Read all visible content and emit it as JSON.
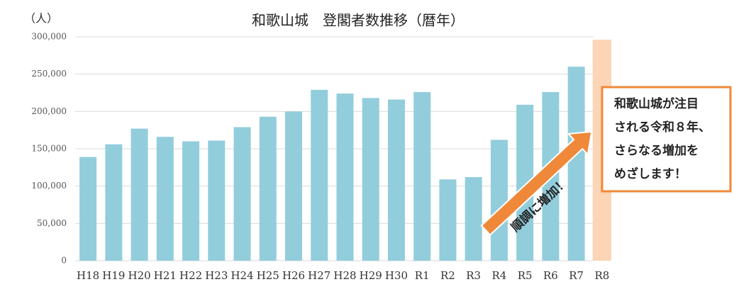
{
  "chart_data": {
    "type": "bar",
    "title": "和歌山城　登閣者数推移（暦年）",
    "y_unit": "（人）",
    "categories": [
      "H18",
      "H19",
      "H20",
      "H21",
      "H22",
      "H23",
      "H24",
      "H25",
      "H26",
      "H27",
      "H28",
      "H29",
      "H30",
      "R1",
      "R2",
      "R3",
      "R4",
      "R5",
      "R6",
      "R7",
      "R8"
    ],
    "values": [
      139000,
      156000,
      177000,
      166000,
      160000,
      161000,
      179000,
      193000,
      200000,
      229000,
      224000,
      218000,
      216000,
      226000,
      109000,
      112000,
      162000,
      209000,
      226000,
      260000,
      null
    ],
    "color": "#92cddc",
    "ylim": [
      0,
      300000
    ],
    "yticks": [
      0,
      {
        "value": 50000,
        "label": "50,000"
      },
      {
        "value": 100000,
        "label": "100,000"
      },
      {
        "value": 150000,
        "label": "150,000"
      },
      {
        "value": 200000,
        "label": "200,000"
      },
      {
        "value": 250000,
        "label": "250,000"
      },
      {
        "value": 300000,
        "label": "300,000"
      }
    ],
    "grid": true,
    "highlight_category": "R8",
    "highlight_color": "#fbd5b5",
    "annotations": {
      "arrow_text": "順調に増加！",
      "arrow_color": "#f0883a",
      "callout_lines": [
        "和歌山城が注目",
        "される令和８年、",
        "さらなる増加を",
        "めざします！"
      ],
      "callout_color": "#f0883a"
    }
  }
}
